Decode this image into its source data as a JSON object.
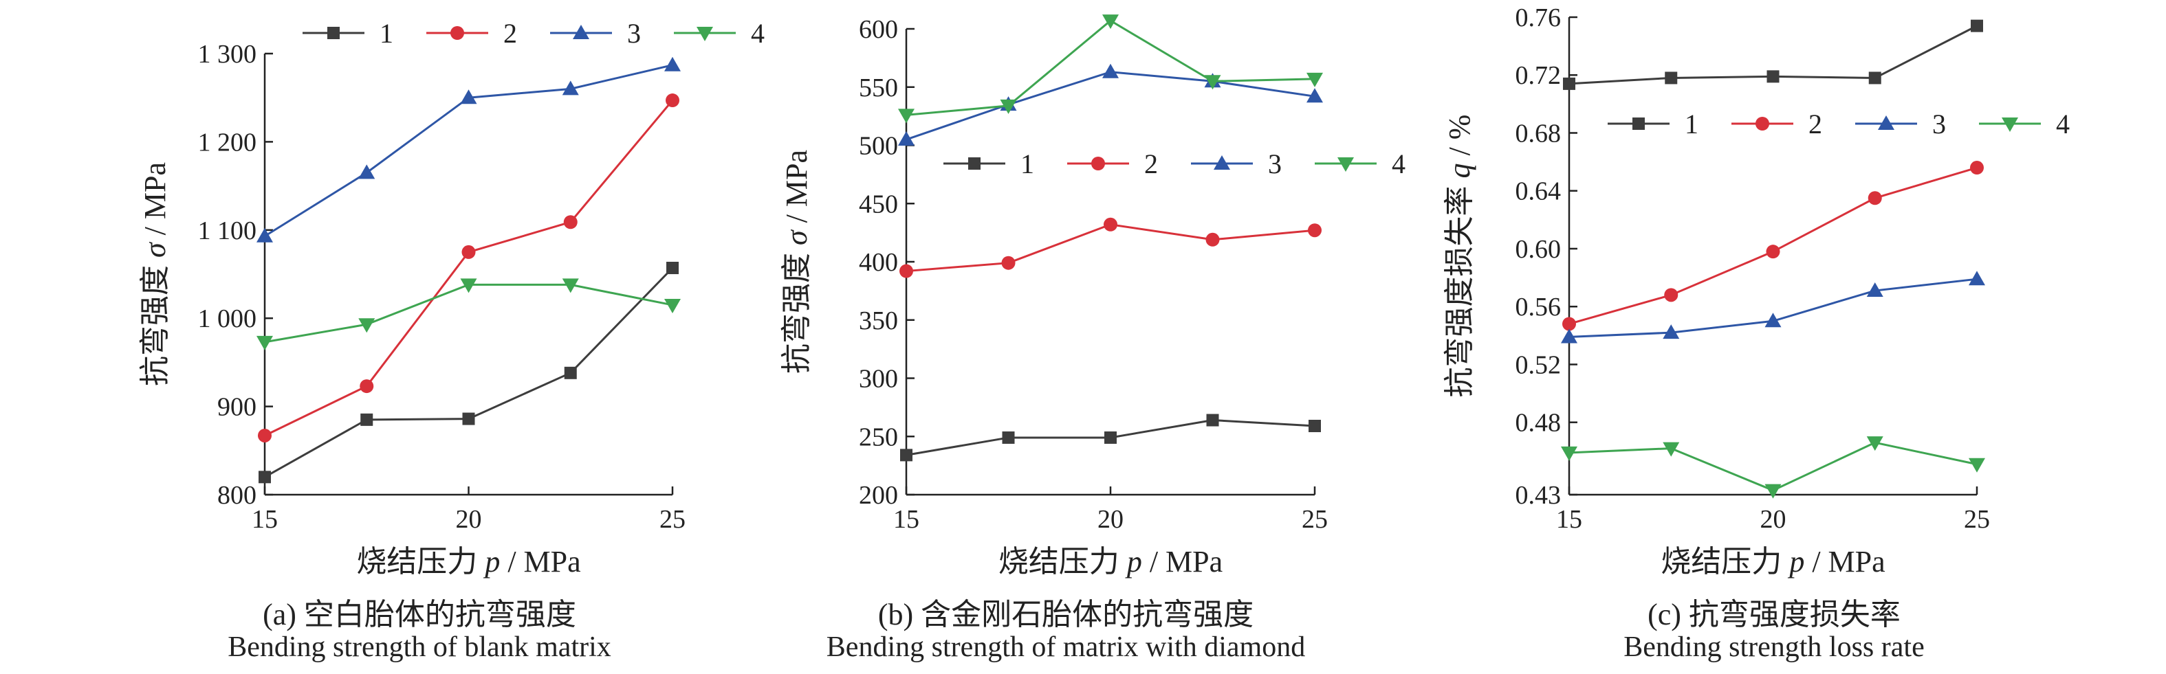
{
  "colors": {
    "1": "#3d3d3d",
    "2": "#d8313a",
    "3": "#2e56a6",
    "4": "#3ea551"
  },
  "chart_data": [
    {
      "type": "line",
      "panel": "a",
      "caption_cn": "(a) 空白胎体的抗弯强度",
      "caption_en": "Bending strength of blank matrix",
      "xlabel_text": "烧结压力",
      "xlabel_symbol": "p",
      "xlabel_unit": "/ MPa",
      "ylabel_text": "抗弯强度",
      "ylabel_symbol": "σ",
      "ylabel_unit": "/ MPa",
      "xlim": [
        15,
        25
      ],
      "ylim": [
        800,
        1300
      ],
      "xticks": [
        15,
        20,
        25
      ],
      "xtick_labels": [
        "15",
        "20",
        "25"
      ],
      "yticks": [
        800,
        900,
        1000,
        1100,
        1200,
        1300
      ],
      "ytick_labels": [
        "800",
        "900",
        "1 000",
        "1 100",
        "1 200",
        "1 300"
      ],
      "legend_position": "top-right, horizontal",
      "x": [
        15,
        17.5,
        20,
        22.5,
        25
      ],
      "series": [
        {
          "name": "1",
          "marker": "square",
          "values": [
            820,
            885,
            886,
            938,
            1057
          ]
        },
        {
          "name": "2",
          "marker": "circle",
          "values": [
            867,
            923,
            1075,
            1109,
            1247
          ]
        },
        {
          "name": "3",
          "marker": "triangle-up",
          "values": [
            1093,
            1165,
            1250,
            1260,
            1287
          ]
        },
        {
          "name": "4",
          "marker": "triangle-down",
          "values": [
            973,
            993,
            1038,
            1038,
            1015
          ]
        }
      ]
    },
    {
      "type": "line",
      "panel": "b",
      "caption_cn": "(b) 含金刚石胎体的抗弯强度",
      "caption_en": "Bending strength of matrix with diamond",
      "xlabel_text": "烧结压力",
      "xlabel_symbol": "p",
      "xlabel_unit": "/ MPa",
      "ylabel_text": "抗弯强度",
      "ylabel_symbol": "σ",
      "ylabel_unit": "/ MPa",
      "xlim": [
        15,
        25
      ],
      "ylim": [
        200,
        600
      ],
      "xticks": [
        15,
        20,
        25
      ],
      "xtick_labels": [
        "15",
        "20",
        "25"
      ],
      "yticks": [
        200,
        250,
        300,
        350,
        400,
        450,
        500,
        550,
        600
      ],
      "ytick_labels": [
        "200",
        "250",
        "300",
        "350",
        "400",
        "450",
        "500",
        "550",
        "600"
      ],
      "legend_position": "middle, horizontal",
      "x": [
        15,
        17.5,
        20,
        22.5,
        25
      ],
      "series": [
        {
          "name": "1",
          "marker": "square",
          "values": [
            234,
            249,
            249,
            264,
            259
          ]
        },
        {
          "name": "2",
          "marker": "circle",
          "values": [
            392,
            399,
            432,
            419,
            427
          ]
        },
        {
          "name": "3",
          "marker": "triangle-up",
          "values": [
            505,
            535,
            563,
            555,
            542
          ]
        },
        {
          "name": "4",
          "marker": "triangle-down",
          "values": [
            526,
            534,
            607,
            555,
            557
          ]
        }
      ]
    },
    {
      "type": "line",
      "panel": "c",
      "caption_cn": "(c) 抗弯强度损失率",
      "caption_en": "Bending strength loss rate",
      "xlabel_text": "烧结压力",
      "xlabel_symbol": "p",
      "xlabel_unit": "/ MPa",
      "ylabel_text": "抗弯强度损失率",
      "ylabel_symbol": "q",
      "ylabel_unit": "/ %",
      "xlim": [
        15,
        25
      ],
      "ylim": [
        0.43,
        0.76
      ],
      "xticks": [
        15,
        20,
        25
      ],
      "xtick_labels": [
        "15",
        "20",
        "25"
      ],
      "yticks": [
        0.43,
        0.48,
        0.52,
        0.56,
        0.6,
        0.64,
        0.68,
        0.72,
        0.76
      ],
      "ytick_labels": [
        "0.43",
        "0.48",
        "0.52",
        "0.56",
        "0.60",
        "0.64",
        "0.68",
        "0.72",
        "0.76"
      ],
      "legend_position": "upper, horizontal",
      "x": [
        15,
        17.5,
        20,
        22.5,
        25
      ],
      "series": [
        {
          "name": "1",
          "marker": "square",
          "values": [
            0.714,
            0.718,
            0.719,
            0.718,
            0.754
          ]
        },
        {
          "name": "2",
          "marker": "circle",
          "values": [
            0.548,
            0.568,
            0.598,
            0.635,
            0.656
          ]
        },
        {
          "name": "3",
          "marker": "triangle-up",
          "values": [
            0.539,
            0.542,
            0.55,
            0.571,
            0.579
          ]
        },
        {
          "name": "4",
          "marker": "triangle-down",
          "values": [
            0.459,
            0.462,
            0.433,
            0.466,
            0.451
          ]
        }
      ]
    }
  ]
}
